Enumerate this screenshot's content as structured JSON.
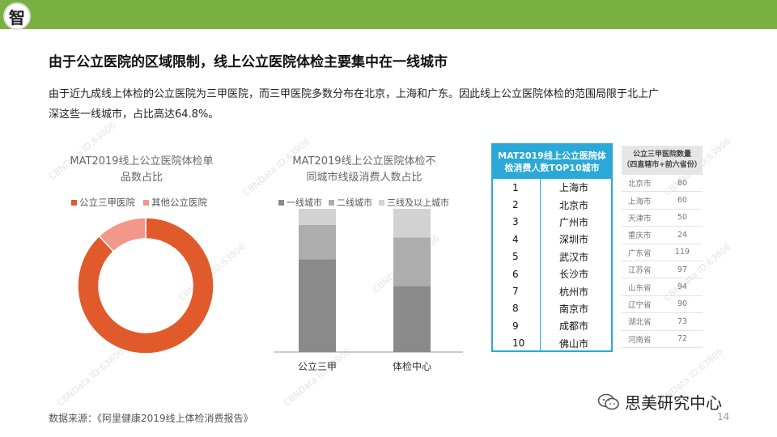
{
  "header": {
    "logo_char": "智"
  },
  "title": "由于公立医院的区域限制，线上公立医院体检主要集中在一线城市",
  "description": "由于近九成线上体检的公立医院为三甲医院，而三甲医院多数分布在北京，上海和广东。因此线上公立医院体检的范围局限于北上广深这些一线城市，占比高达64.8%。",
  "colors": {
    "accent": "#7ab040",
    "orange": "#e05a2b",
    "salmon": "#f2978a",
    "blue": "#2aa8d8"
  },
  "chart_data": [
    {
      "type": "pie",
      "title": "MAT2019线上公立医院体检单品数占比",
      "categories": [
        "公立三甲医院",
        "其他公立医院"
      ],
      "values": [
        88,
        12
      ],
      "colors": [
        "#e05a2b",
        "#f2978a"
      ],
      "legend": "top"
    },
    {
      "type": "bar",
      "stacked": true,
      "title": "MAT2019线上公立医院体检不同城市线级消费人数占比",
      "categories": [
        "公立三甲",
        "体检中心"
      ],
      "series": [
        {
          "name": "一线城市",
          "values": [
            64.8,
            46
          ],
          "color": "#8a8a8a"
        },
        {
          "name": "二线城市",
          "values": [
            24,
            34
          ],
          "color": "#adadad"
        },
        {
          "name": "三线及以上城市",
          "values": [
            11.2,
            20
          ],
          "color": "#d2d2d2"
        }
      ],
      "ylim": [
        0,
        100
      ],
      "legend": "top"
    },
    {
      "type": "table",
      "title": "MAT2019线上公立医院体检消费人数TOP10城市",
      "rows": [
        {
          "rank": "1",
          "city": "上海市"
        },
        {
          "rank": "2",
          "city": "北京市"
        },
        {
          "rank": "3",
          "city": "广州市"
        },
        {
          "rank": "4",
          "city": "深圳市"
        },
        {
          "rank": "5",
          "city": "武汉市"
        },
        {
          "rank": "6",
          "city": "长沙市"
        },
        {
          "rank": "7",
          "city": "杭州市"
        },
        {
          "rank": "8",
          "city": "南京市"
        },
        {
          "rank": "9",
          "city": "成都市"
        },
        {
          "rank": "10",
          "city": "佛山市"
        }
      ]
    },
    {
      "type": "table",
      "title": "公立三甲医院数量（四直辖市+前六省份）",
      "rows": [
        {
          "region": "北京市",
          "value": "80"
        },
        {
          "region": "上海市",
          "value": "60"
        },
        {
          "region": "天津市",
          "value": "50"
        },
        {
          "region": "重庆市",
          "value": "24"
        },
        {
          "region": "广东省",
          "value": "119"
        },
        {
          "region": "江苏省",
          "value": "97"
        },
        {
          "region": "山东省",
          "value": "94"
        },
        {
          "region": "辽宁省",
          "value": "90"
        },
        {
          "region": "湖北省",
          "value": "73"
        },
        {
          "region": "河南省",
          "value": "72"
        }
      ]
    }
  ],
  "chart1_title_lines": [
    "MAT2019线上公立医院体检单",
    "品数占比"
  ],
  "chart2_title_lines": [
    "MAT2019线上公立医院体检不",
    "同城市线级消费人数占比"
  ],
  "rank_head_lines": [
    "MAT2019线上公立医院体",
    "检消费人数TOP10城市"
  ],
  "prov_head_lines": [
    "公立三甲医院数量",
    "（四直辖市+前六省份）"
  ],
  "watermark": "CBNData ID:63806",
  "source": "数据来源：《阿里健康2019线上体检消费报告》",
  "brand": "思美研究中心",
  "page_number": "14"
}
